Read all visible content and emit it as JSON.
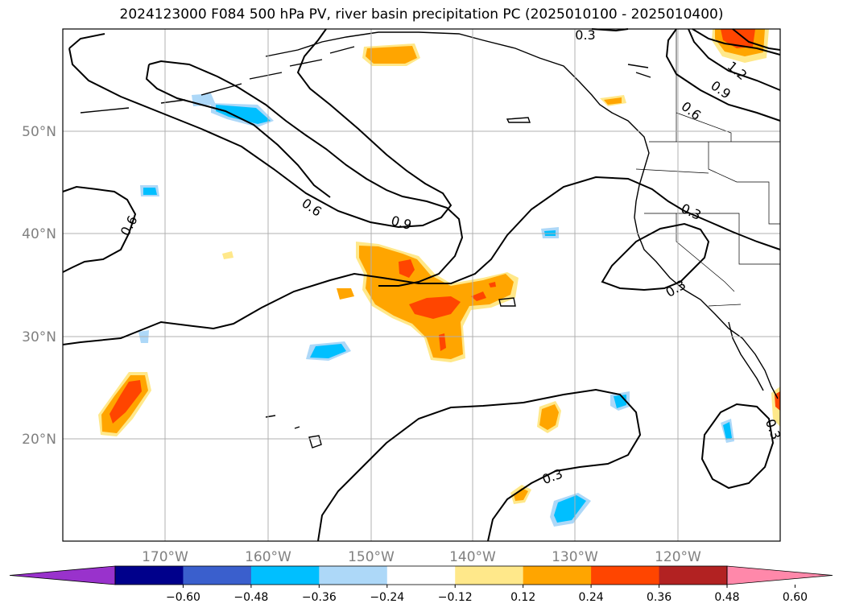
{
  "title": "2024123000 F084 500 hPa PV, river basin precipitation PC (2025010100 - 2025010400)",
  "map": {
    "lon_range": [
      -180,
      -110
    ],
    "lat_range": [
      10,
      60
    ],
    "lon_ticks": [
      {
        "value": -170,
        "label": "170°W"
      },
      {
        "value": -160,
        "label": "160°W"
      },
      {
        "value": -150,
        "label": "150°W"
      },
      {
        "value": -140,
        "label": "140°W"
      },
      {
        "value": -130,
        "label": "130°W"
      },
      {
        "value": -120,
        "label": "120°W"
      }
    ],
    "lat_ticks": [
      {
        "value": 50,
        "label": "50°N"
      },
      {
        "value": 40,
        "label": "40°N"
      },
      {
        "value": 30,
        "label": "30°N"
      },
      {
        "value": 20,
        "label": "20°N"
      }
    ],
    "grid": true
  },
  "contour_labels": [
    "0.3",
    "0.6",
    "0.6",
    "0.9",
    "0.6",
    "0.9",
    "1.2",
    "0.3",
    "0.3",
    "0.3",
    "0.3"
  ],
  "colorbar": {
    "colors": [
      "#9932cc",
      "#00008b",
      "#3a5fcd",
      "#00bfff",
      "#add8f8",
      "#ffffff",
      "#ffe88a",
      "#ffa500",
      "#ff4500",
      "#b22222",
      "#ff88aa"
    ],
    "tick_labels": [
      "−0.60",
      "−0.48",
      "−0.36",
      "−0.24",
      "−0.12",
      "0.12",
      "0.24",
      "0.36",
      "0.48",
      "0.60"
    ]
  },
  "legend_colors": {
    "neg_light": "#add8f8",
    "neg_mid": "#00bfff",
    "pos_light": "#ffe88a",
    "pos_mid": "#ffa500",
    "pos_strong": "#ff4500"
  }
}
